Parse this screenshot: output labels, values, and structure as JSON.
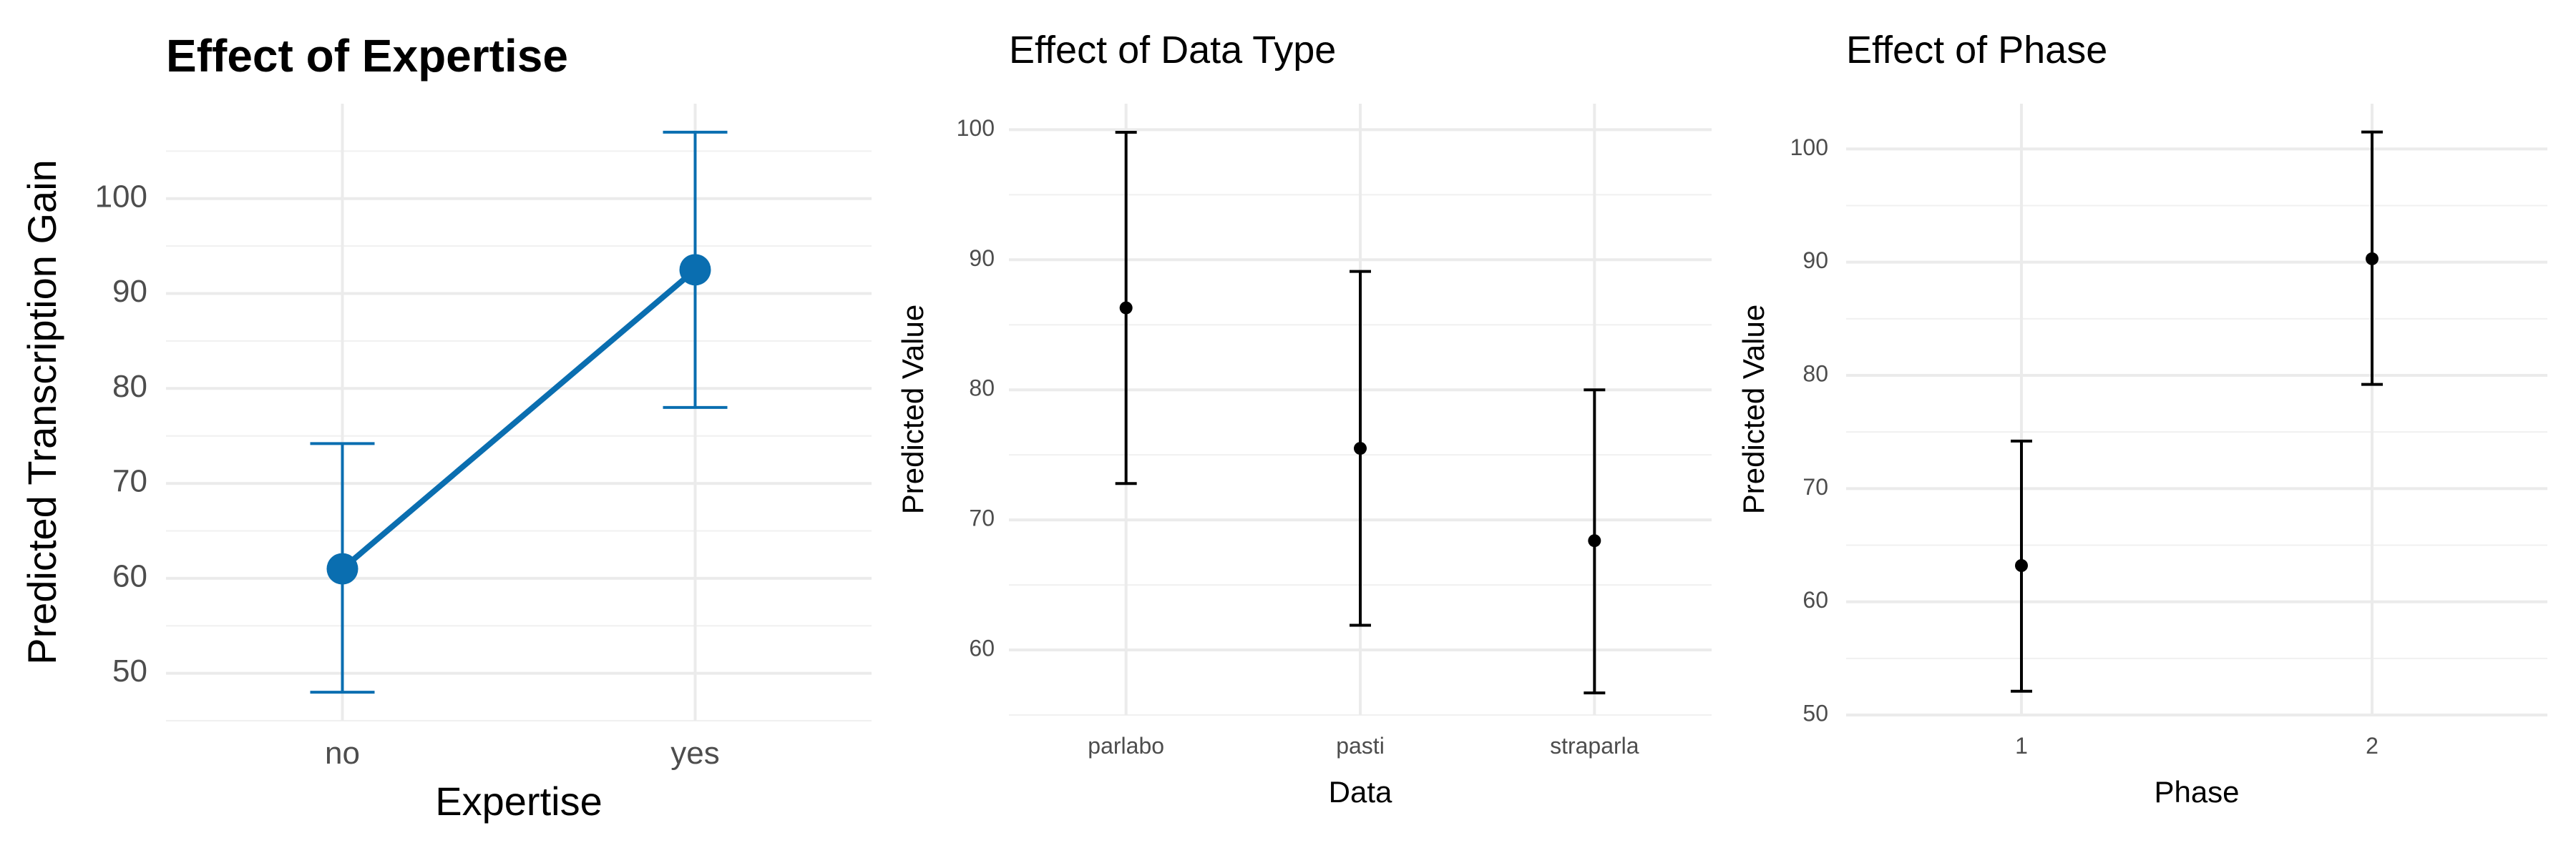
{
  "chart_data": [
    {
      "type": "line",
      "title": "Effect of Expertise",
      "xlabel": "Expertise",
      "ylabel": "Predicted Transcription Gain",
      "categories": [
        "no",
        "yes"
      ],
      "series": [
        {
          "values": [
            61.0,
            92.5
          ],
          "lower": [
            48.0,
            78.0
          ],
          "upper": [
            74.2,
            107.0
          ]
        }
      ],
      "ylim": [
        45,
        110
      ],
      "yticks": [
        50,
        60,
        70,
        80,
        90,
        100
      ],
      "grid": true,
      "color": "#0a6eb0"
    },
    {
      "type": "scatter",
      "title": "Effect of Data Type",
      "xlabel": "Data",
      "ylabel": "Predicted Value",
      "categories": [
        "parlabo",
        "pasti",
        "straparla"
      ],
      "series": [
        {
          "values": [
            86.3,
            75.5,
            68.4
          ],
          "lower": [
            72.8,
            61.9,
            56.7
          ],
          "upper": [
            99.8,
            89.1,
            80.0
          ]
        }
      ],
      "ylim": [
        55,
        102
      ],
      "yticks": [
        60,
        70,
        80,
        90,
        100
      ],
      "grid": true,
      "color": "#000000"
    },
    {
      "type": "scatter",
      "title": "Effect of Phase",
      "xlabel": "Phase",
      "ylabel": "Predicted Value",
      "categories": [
        "1",
        "2"
      ],
      "series": [
        {
          "values": [
            63.2,
            90.3
          ],
          "lower": [
            52.1,
            79.2
          ],
          "upper": [
            74.2,
            101.5
          ]
        }
      ],
      "ylim": [
        50,
        104
      ],
      "yticks": [
        50,
        60,
        70,
        80,
        90,
        100
      ],
      "grid": true,
      "color": "#000000"
    }
  ]
}
